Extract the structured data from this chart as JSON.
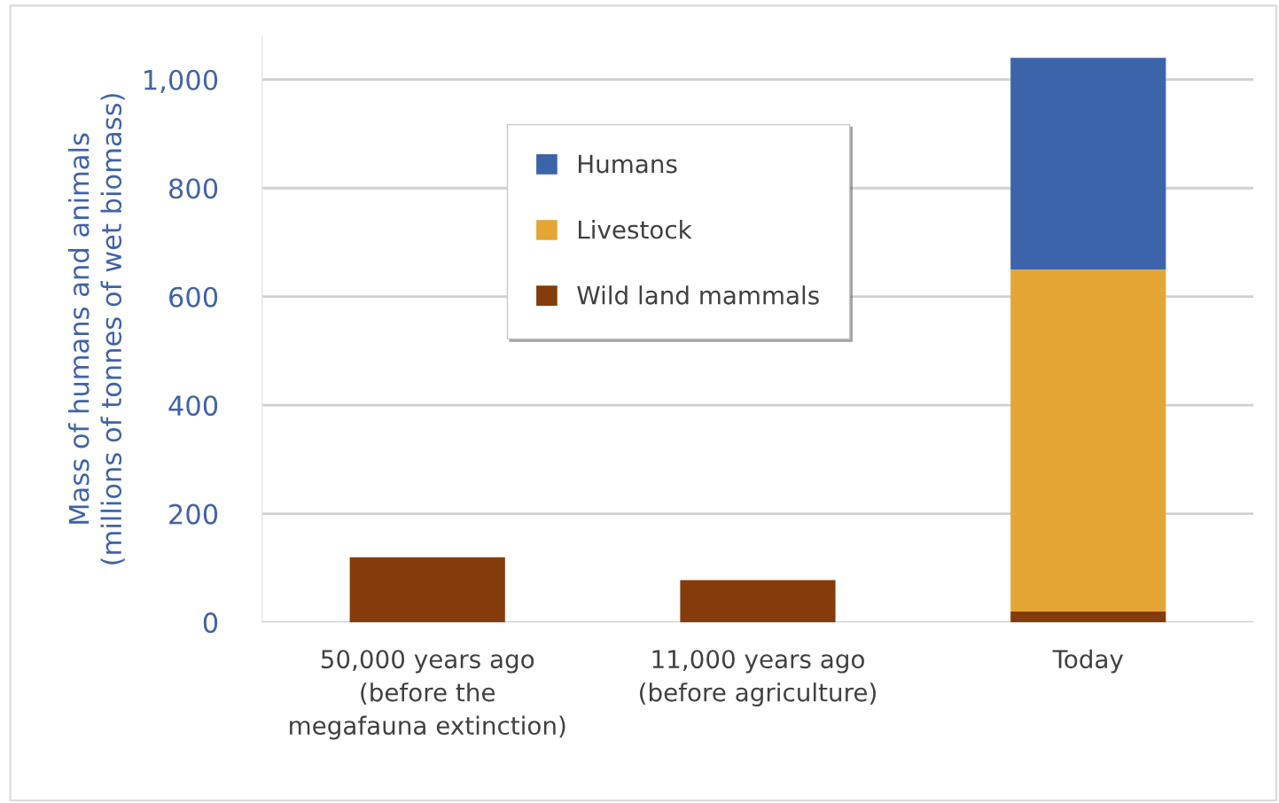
{
  "chart_data": {
    "type": "bar",
    "stacked": true,
    "categories": [
      "50,000 years ago\n(before the\nmegafauna extinction)",
      "11,000 years ago\n(before agriculture)",
      "Today"
    ],
    "ylabel": "Mass of humans and animals\n(millions of tonnes of wet biomass)",
    "series": [
      {
        "name": "Wild land mammals",
        "color": "#843c0c",
        "values": [
          120,
          78,
          20
        ]
      },
      {
        "name": "Livestock",
        "color": "#e5a535",
        "values": [
          0,
          0,
          630
        ]
      },
      {
        "name": "Humans",
        "color": "#3c64ab",
        "values": [
          0,
          0,
          390
        ]
      }
    ],
    "ylim": [
      0,
      1080
    ],
    "yticks": [
      {
        "value": 0,
        "label": "0"
      },
      {
        "value": 200,
        "label": "200"
      },
      {
        "value": 400,
        "label": "400"
      },
      {
        "value": 600,
        "label": "600"
      },
      {
        "value": 800,
        "label": "800"
      },
      {
        "value": 1000,
        "label": "1,000"
      }
    ],
    "grid": "y",
    "legend": "top"
  }
}
